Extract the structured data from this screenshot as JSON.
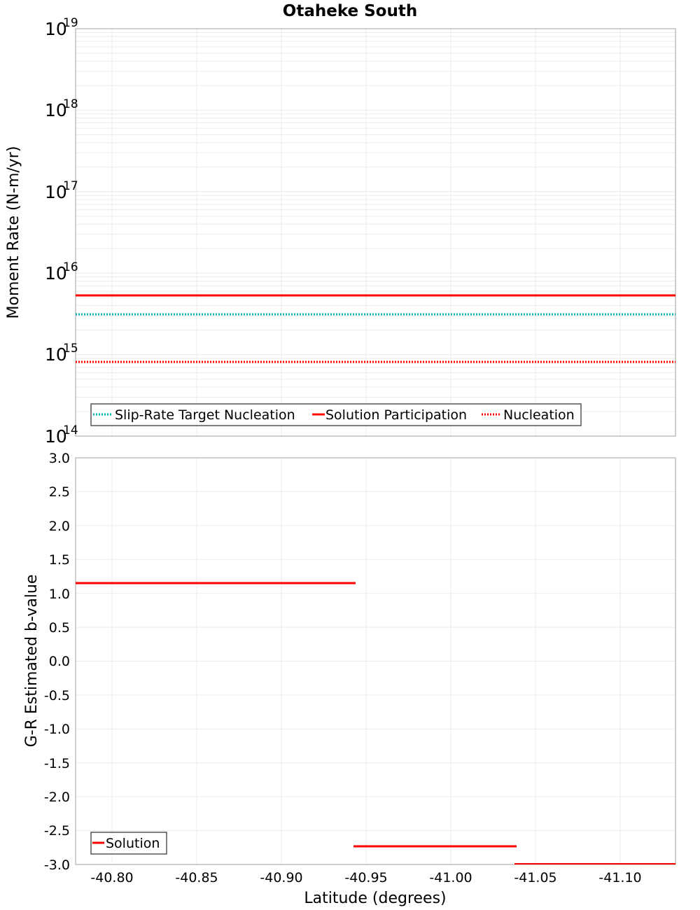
{
  "chart_data": [
    {
      "type": "line",
      "title": "Otaheke South",
      "xlabel": "Latitude (degrees)",
      "ylabel": "Moment Rate (N-m/yr)",
      "yscale": "log",
      "ylim": [
        100000000000000.0,
        1e+19
      ],
      "xlim": [
        -40.7785,
        -41.1326
      ],
      "x_reversed": true,
      "y_tick_labels": [
        {
          "base": "10",
          "exp": "19",
          "value": 1e+19
        },
        {
          "base": "10",
          "exp": "18",
          "value": 1e+18
        },
        {
          "base": "10",
          "exp": "17",
          "value": 1e+17
        },
        {
          "base": "10",
          "exp": "16",
          "value": 1e+16
        },
        {
          "base": "10",
          "exp": "15",
          "value": 1000000000000000.0
        },
        {
          "base": "10",
          "exp": "14",
          "value": 100000000000000.0
        }
      ],
      "grid": true,
      "legend_position": "lower-left",
      "series": [
        {
          "name": "Slip-Rate Target Nucleation",
          "color": "#00b2b2",
          "style": "dotted",
          "segments": [
            {
              "x0": -40.7785,
              "x1": -41.1326,
              "y": 3100000000000000.0
            }
          ]
        },
        {
          "name": "Solution Participation",
          "color": "#ff0000",
          "style": "solid",
          "segments": [
            {
              "x0": -40.7785,
              "x1": -41.1326,
              "y": 5300000000000000.0
            }
          ]
        },
        {
          "name": "Nucleation",
          "color": "#ff0000",
          "style": "dotted",
          "segments": [
            {
              "x0": -40.7785,
              "x1": -41.1326,
              "y": 810000000000000.0
            }
          ]
        }
      ]
    },
    {
      "type": "line",
      "title": "",
      "xlabel": "Latitude (degrees)",
      "ylabel": "G-R Estimated b-value",
      "ylim": [
        -3.0,
        3.0
      ],
      "xlim": [
        -40.7785,
        -41.1326
      ],
      "x_reversed": true,
      "y_ticks": [
        "3.0",
        "2.5",
        "2.0",
        "1.5",
        "1.0",
        "0.5",
        "0.0",
        "-0.5",
        "-1.0",
        "-1.5",
        "-2.0",
        "-2.5",
        "-3.0"
      ],
      "x_ticks": [
        "-40.80",
        "-40.85",
        "-40.90",
        "-40.95",
        "-41.00",
        "-41.05",
        "-41.10"
      ],
      "grid": true,
      "legend_position": "lower-left",
      "series": [
        {
          "name": "Solution",
          "color": "#ff0000",
          "style": "solid",
          "segments": [
            {
              "x0": -40.7785,
              "x1": -40.874,
              "y": 1.15
            },
            {
              "x0": -40.874,
              "x1": -40.943,
              "y": 1.15
            },
            {
              "x0": -40.943,
              "x1": -41.038,
              "y": -2.73
            },
            {
              "x0": -41.038,
              "x1": -41.1326,
              "y": -3.0
            }
          ]
        }
      ]
    }
  ],
  "header": {
    "title": "Otaheke South"
  },
  "top_plot": {
    "ylabel": "Moment Rate (N-m/yr)",
    "y_ticks": [
      {
        "base": "10",
        "exp": "19"
      },
      {
        "base": "10",
        "exp": "18"
      },
      {
        "base": "10",
        "exp": "17"
      },
      {
        "base": "10",
        "exp": "16"
      },
      {
        "base": "10",
        "exp": "15"
      },
      {
        "base": "10",
        "exp": "14"
      }
    ],
    "legend": [
      {
        "label": "Slip-Rate Target Nucleation",
        "color": "#00b2b2",
        "style": "dotted"
      },
      {
        "label": "Solution Participation",
        "color": "#ff0000",
        "style": "solid"
      },
      {
        "label": "Nucleation",
        "color": "#ff0000",
        "style": "dotted"
      }
    ]
  },
  "bottom_plot": {
    "ylabel": "G-R Estimated b-value",
    "xlabel": "Latitude (degrees)",
    "y_ticks": [
      "3.0",
      "2.5",
      "2.0",
      "1.5",
      "1.0",
      "0.5",
      "0.0",
      "-0.5",
      "-1.0",
      "-1.5",
      "-2.0",
      "-2.5",
      "-3.0"
    ],
    "x_ticks": [
      "-40.80",
      "-40.85",
      "-40.90",
      "-40.95",
      "-41.00",
      "-41.05",
      "-41.10"
    ],
    "legend": [
      {
        "label": "Solution",
        "color": "#ff0000",
        "style": "solid"
      }
    ]
  }
}
